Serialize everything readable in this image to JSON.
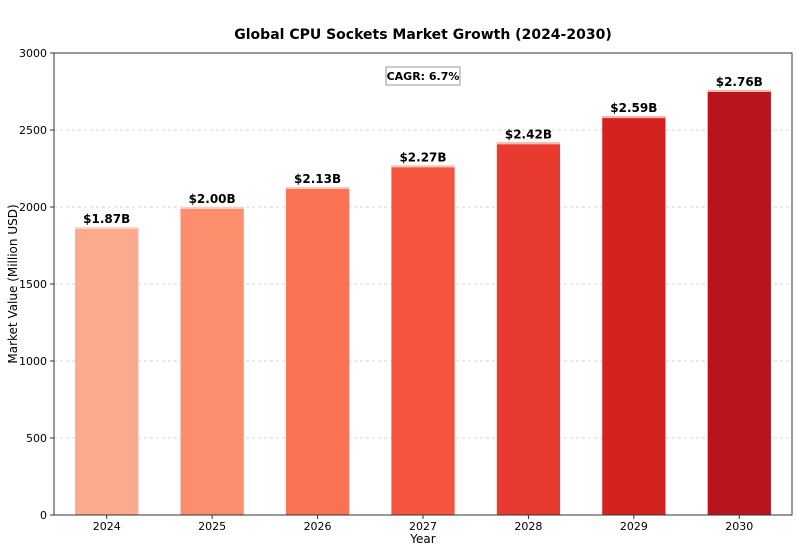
{
  "chart_data": {
    "type": "bar",
    "title": "Global CPU Sockets Market Growth (2024-2030)",
    "xlabel": "Year",
    "ylabel": "Market Value (Million USD)",
    "categories": [
      "2024",
      "2025",
      "2026",
      "2027",
      "2028",
      "2029",
      "2030"
    ],
    "values": [
      1870,
      2000,
      2130,
      2270,
      2420,
      2590,
      2760
    ],
    "data_labels": [
      "$1.87B",
      "$2.00B",
      "$2.13B",
      "$2.27B",
      "$2.42B",
      "$2.59B",
      "$2.76B"
    ],
    "colors": [
      "#fcaa8e",
      "#fc8d6d",
      "#fb7252",
      "#f5553e",
      "#e83a2e",
      "#d32220",
      "#b8141b"
    ],
    "ylim": [
      0,
      3000
    ],
    "yticks": [
      0,
      500,
      1000,
      1500,
      2000,
      2500,
      3000
    ],
    "grid": true,
    "annotation": "CAGR: 6.7%"
  }
}
